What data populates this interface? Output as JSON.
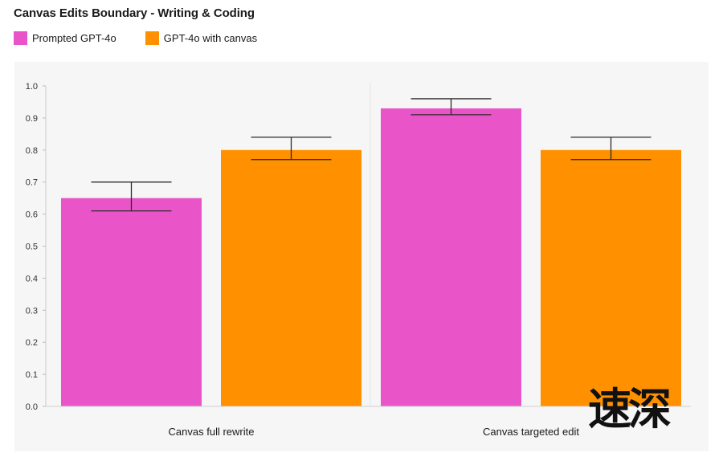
{
  "chart_data": {
    "type": "bar",
    "title": "Canvas Edits Boundary - Writing & Coding",
    "categories": [
      "Canvas full rewrite",
      "Canvas targeted edit"
    ],
    "series": [
      {
        "name": "Prompted GPT-4o",
        "color": "#e955c8",
        "values": [
          0.65,
          0.93
        ],
        "error_low": [
          0.61,
          0.91
        ],
        "error_high": [
          0.7,
          0.96
        ]
      },
      {
        "name": "GPT-4o with canvas",
        "color": "#ff9100",
        "values": [
          0.8,
          0.8
        ],
        "error_low": [
          0.77,
          0.77
        ],
        "error_high": [
          0.84,
          0.84
        ]
      }
    ],
    "yticks": [
      "0.0",
      "0.1",
      "0.2",
      "0.3",
      "0.4",
      "0.5",
      "0.6",
      "0.7",
      "0.8",
      "0.9",
      "1.0"
    ],
    "ylim": [
      0,
      1.0
    ],
    "grid": false,
    "legend_position": "top-left"
  },
  "watermark": "速深"
}
